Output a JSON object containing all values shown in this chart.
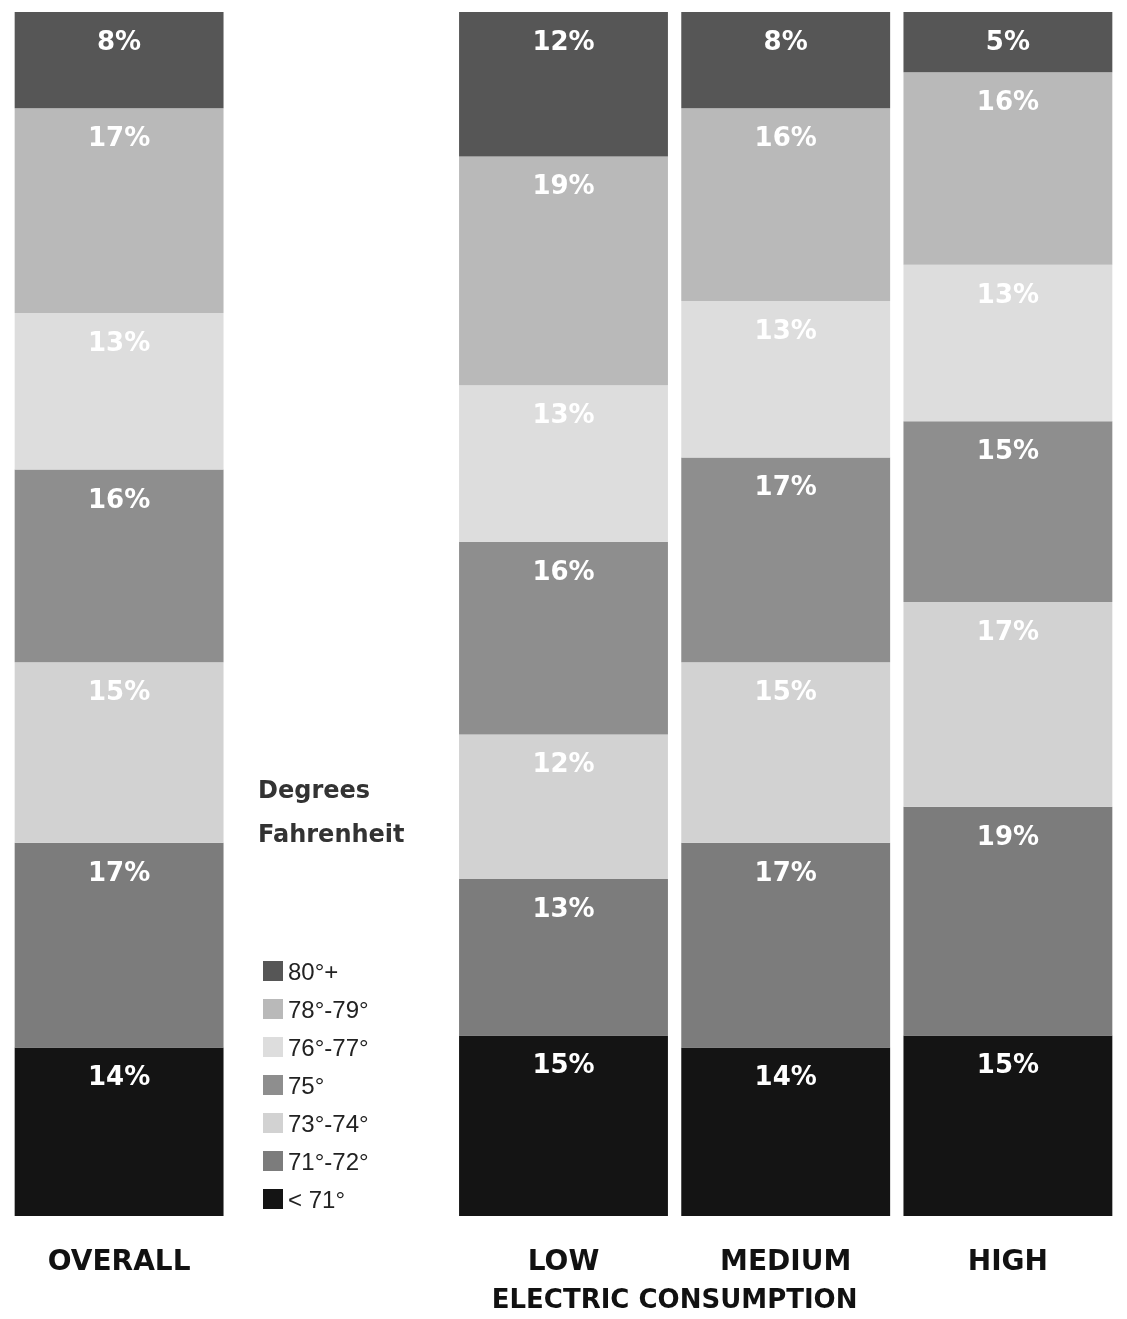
{
  "chart_data": {
    "type": "bar",
    "stacked": true,
    "xlabel": "ELECTRIC CONSUMPTION",
    "legend_title": "Degrees Fahrenheit",
    "legend": "bottom left",
    "categories": [
      "OVERALL",
      null,
      "LOW",
      "MEDIUM",
      "HIGH"
    ],
    "series": [
      {
        "name": "< 71°",
        "color": "#141414",
        "values": [
          14,
          null,
          15,
          14,
          15
        ],
        "value_labels": [
          "14%",
          null,
          "15%",
          "14%",
          "15%"
        ]
      },
      {
        "name": "71°-72°",
        "color": "#7c7c7c",
        "values": [
          17,
          null,
          13,
          17,
          19
        ],
        "value_labels": [
          "17%",
          null,
          "13%",
          "17%",
          "19%"
        ]
      },
      {
        "name": "73°-74°",
        "color": "#d2d2d2",
        "values": [
          15,
          null,
          12,
          15,
          17
        ],
        "value_labels": [
          "15%",
          null,
          "12%",
          "15%",
          "17%"
        ]
      },
      {
        "name": "75°",
        "color": "#8e8e8e",
        "values": [
          16,
          null,
          16,
          17,
          15
        ],
        "value_labels": [
          "16%",
          null,
          "16%",
          "17%",
          "15%"
        ]
      },
      {
        "name": "76°-77°",
        "color": "#dddddd",
        "values": [
          13,
          null,
          13,
          13,
          13
        ],
        "value_labels": [
          "13%",
          null,
          "13%",
          "13%",
          "13%"
        ]
      },
      {
        "name": "78°-79°",
        "color": "#b9b9b9",
        "values": [
          17,
          null,
          19,
          16,
          16
        ],
        "value_labels": [
          "17%",
          null,
          "19%",
          "16%",
          "16%"
        ]
      },
      {
        "name": "80°+",
        "color": "#565656",
        "values": [
          8,
          null,
          12,
          8,
          5
        ],
        "value_labels": [
          "8%",
          null,
          "12%",
          "8%",
          "5%"
        ]
      }
    ]
  }
}
